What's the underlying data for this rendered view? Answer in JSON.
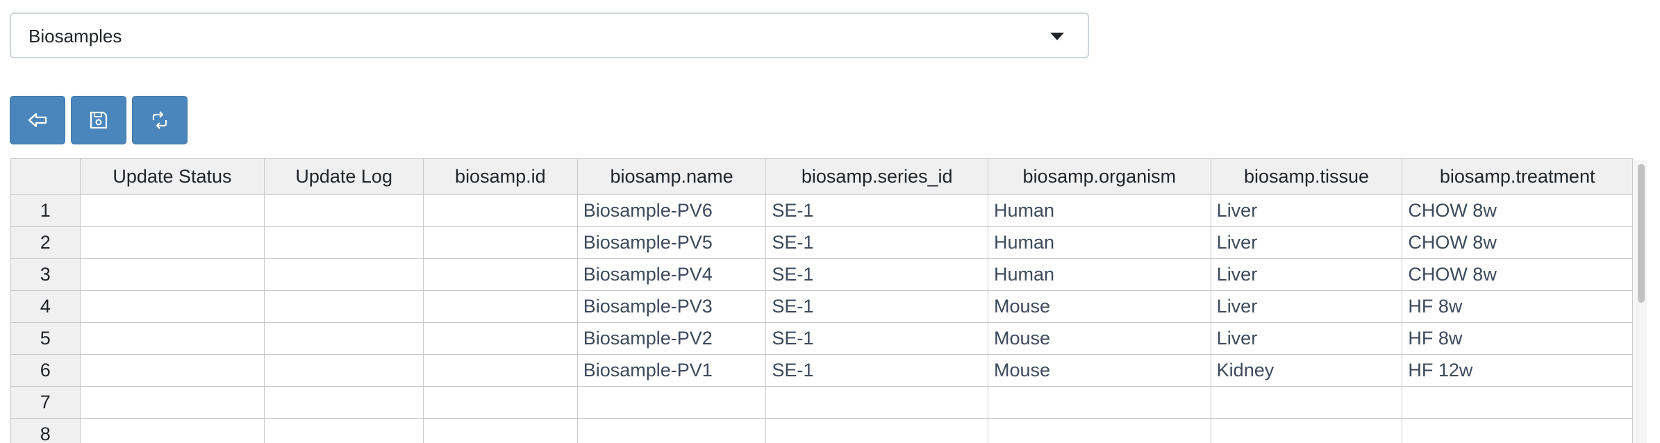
{
  "selector": {
    "value": "Biosamples"
  },
  "toolbar": {
    "buttons": [
      {
        "icon": "back-arrow-icon"
      },
      {
        "icon": "save-icon"
      },
      {
        "icon": "refresh-icon"
      }
    ],
    "color": "#4a86bb"
  },
  "table": {
    "columns": [
      "Update Status",
      "Update Log",
      "biosamp.id",
      "biosamp.name",
      "biosamp.series_id",
      "biosamp.organism",
      "biosamp.tissue",
      "biosamp.treatment"
    ],
    "rows": [
      {
        "num": "1",
        "cells": [
          "",
          "",
          "",
          "Biosample-PV6",
          "SE-1",
          "Human",
          "Liver",
          "CHOW 8w"
        ]
      },
      {
        "num": "2",
        "cells": [
          "",
          "",
          "",
          "Biosample-PV5",
          "SE-1",
          "Human",
          "Liver",
          "CHOW 8w"
        ]
      },
      {
        "num": "3",
        "cells": [
          "",
          "",
          "",
          "Biosample-PV4",
          "SE-1",
          "Human",
          "Liver",
          "CHOW 8w"
        ]
      },
      {
        "num": "4",
        "cells": [
          "",
          "",
          "",
          "Biosample-PV3",
          "SE-1",
          "Mouse",
          "Liver",
          "HF 8w"
        ]
      },
      {
        "num": "5",
        "cells": [
          "",
          "",
          "",
          "Biosample-PV2",
          "SE-1",
          "Mouse",
          "Liver",
          "HF 8w"
        ]
      },
      {
        "num": "6",
        "cells": [
          "",
          "",
          "",
          "Biosample-PV1",
          "SE-1",
          "Mouse",
          "Kidney",
          "HF 12w"
        ]
      },
      {
        "num": "7",
        "cells": [
          "",
          "",
          "",
          "",
          "",
          "",
          "",
          ""
        ]
      },
      {
        "num": "8",
        "cells": [
          "",
          "",
          "",
          "",
          "",
          "",
          "",
          ""
        ]
      }
    ]
  }
}
